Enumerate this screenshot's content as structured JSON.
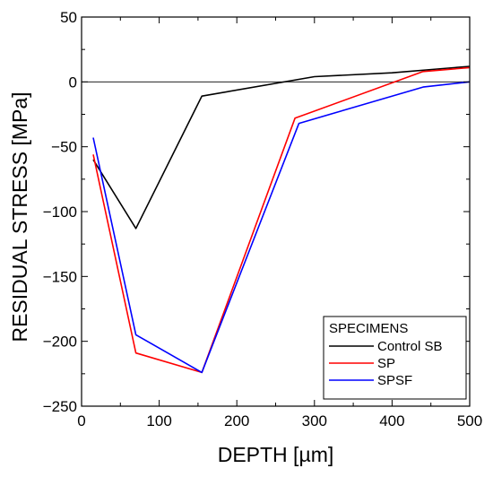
{
  "chart_data": {
    "type": "line",
    "xlabel": "DEPTH [µm]",
    "ylabel": "RESIDUAL STRESS [MPa]",
    "xlim": [
      0,
      500
    ],
    "ylim": [
      -250,
      50
    ],
    "xticks": [
      0,
      100,
      200,
      300,
      400,
      500
    ],
    "yticks": [
      -250,
      -200,
      -150,
      -100,
      -50,
      0,
      50
    ],
    "xtick_labels": [
      "0",
      "100",
      "200",
      "300",
      "400",
      "500"
    ],
    "ytick_labels": [
      "−250",
      "−200",
      "−150",
      "−100",
      "−50",
      "0",
      "50"
    ],
    "zero_line": true,
    "grid": false,
    "legend": {
      "title": "SPECIMENS",
      "placement": "bottom-right"
    },
    "series": [
      {
        "name": "Control SB",
        "color": "#000000",
        "x": [
          15,
          70,
          155,
          300,
          400,
          500
        ],
        "y": [
          -60,
          -113,
          -11,
          4,
          7,
          12
        ]
      },
      {
        "name": "SP",
        "color": "#ff0000",
        "x": [
          15,
          70,
          155,
          275,
          440,
          500
        ],
        "y": [
          -56,
          -209,
          -224,
          -28,
          8,
          11
        ]
      },
      {
        "name": "SPSF",
        "color": "#0000ff",
        "x": [
          15,
          70,
          155,
          280,
          440,
          500
        ],
        "y": [
          -43,
          -195,
          -224,
          -32,
          -4,
          0
        ]
      }
    ]
  }
}
